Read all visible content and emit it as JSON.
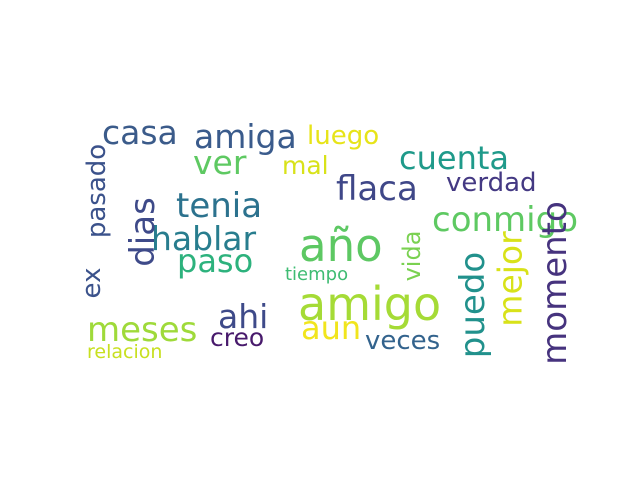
{
  "words": [
    {
      "text": "casa",
      "color": "#3b5b8a"
    },
    {
      "text": "amiga",
      "color": "#3a5b8c"
    },
    {
      "text": "luego",
      "color": "#e7e419"
    },
    {
      "text": "cuenta",
      "color": "#1f9a8a"
    },
    {
      "text": "ver",
      "color": "#5ec962"
    },
    {
      "text": "mal",
      "color": "#d8e219"
    },
    {
      "text": "flaca",
      "color": "#3f4788"
    },
    {
      "text": "verdad",
      "color": "#443983"
    },
    {
      "text": "tenia",
      "color": "#2c728e"
    },
    {
      "text": "pasado",
      "color": "#3b528b"
    },
    {
      "text": "conmigo",
      "color": "#5ec962"
    },
    {
      "text": "dias",
      "color": "#3e4a89"
    },
    {
      "text": "hablar",
      "color": "#287d8e"
    },
    {
      "text": "año",
      "color": "#5dc863"
    },
    {
      "text": "paso",
      "color": "#2db27d"
    },
    {
      "text": "vida",
      "color": "#7ad151"
    },
    {
      "text": "tiempo",
      "color": "#3fbc73"
    },
    {
      "text": "ex",
      "color": "#3b528b"
    },
    {
      "text": "momento",
      "color": "#46337e"
    },
    {
      "text": "mejor",
      "color": "#d8e219"
    },
    {
      "text": "puedo",
      "color": "#21918c"
    },
    {
      "text": "amigo",
      "color": "#a5db36"
    },
    {
      "text": "ahi",
      "color": "#3e4a89"
    },
    {
      "text": "meses",
      "color": "#9fda3a"
    },
    {
      "text": "aun",
      "color": "#f1e51d"
    },
    {
      "text": "creo",
      "color": "#481a6c"
    },
    {
      "text": "veces",
      "color": "#33638d"
    },
    {
      "text": "relacion",
      "color": "#c8e020"
    }
  ]
}
